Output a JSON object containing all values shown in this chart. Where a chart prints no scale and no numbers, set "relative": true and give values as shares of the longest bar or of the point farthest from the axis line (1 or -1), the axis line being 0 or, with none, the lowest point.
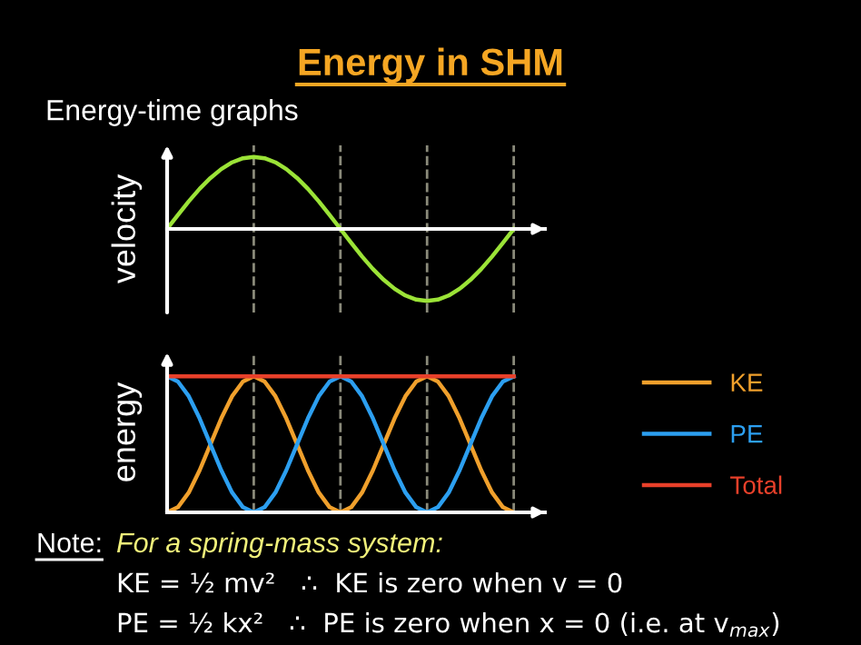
{
  "chart_data": [
    {
      "type": "line",
      "title": "Energy in SHM",
      "subtitle": "Energy-time graphs",
      "ylabel": "velocity",
      "relative": true,
      "grid": "x",
      "legend": false,
      "marker": "none",
      "line_style": "solid",
      "categories": [
        null,
        null,
        null,
        null,
        null,
        null,
        null,
        null,
        null,
        null,
        null,
        null,
        null,
        null,
        null,
        null,
        null,
        null,
        null,
        null,
        null,
        null,
        null,
        null,
        null,
        null,
        null,
        null,
        null,
        null,
        null,
        null,
        null
      ],
      "series": [
        {
          "color": "#9be337",
          "values": [
            0,
            0.195,
            0.383,
            0.556,
            0.707,
            0.831,
            0.924,
            0.981,
            1,
            0.981,
            0.924,
            0.831,
            0.707,
            0.556,
            0.383,
            0.195,
            0,
            -0.195,
            -0.383,
            -0.556,
            -0.707,
            -0.831,
            -0.924,
            -0.981,
            -1,
            -0.981,
            -0.924,
            -0.831,
            -0.707,
            -0.556,
            -0.383,
            -0.195,
            0
          ]
        }
      ]
    },
    {
      "type": "line",
      "ylabel": "energy",
      "relative": true,
      "grid": "x",
      "legend": "right",
      "marker": "none",
      "line_style": "solid",
      "categories": [
        null,
        null,
        null,
        null,
        null,
        null,
        null,
        null,
        null,
        null,
        null,
        null,
        null,
        null,
        null,
        null,
        null,
        null,
        null,
        null,
        null,
        null,
        null,
        null,
        null,
        null,
        null,
        null,
        null,
        null,
        null,
        null,
        null
      ],
      "series": [
        {
          "name": "KE",
          "color": "#f0a02c",
          "values": [
            0,
            0.038,
            0.146,
            0.309,
            0.5,
            0.691,
            0.854,
            0.962,
            1,
            0.962,
            0.854,
            0.691,
            0.5,
            0.309,
            0.146,
            0.038,
            0,
            0.038,
            0.146,
            0.309,
            0.5,
            0.691,
            0.854,
            0.962,
            1,
            0.962,
            0.854,
            0.691,
            0.5,
            0.309,
            0.146,
            0.038,
            0
          ]
        },
        {
          "name": "PE",
          "color": "#2c9ff0",
          "values": [
            1,
            0.962,
            0.854,
            0.691,
            0.5,
            0.309,
            0.146,
            0.038,
            0,
            0.038,
            0.146,
            0.309,
            0.5,
            0.691,
            0.854,
            0.962,
            1,
            0.962,
            0.854,
            0.691,
            0.5,
            0.309,
            0.146,
            0.038,
            0,
            0.038,
            0.146,
            0.309,
            0.5,
            0.691,
            0.854,
            0.962,
            1
          ]
        },
        {
          "name": "Total",
          "color": "#e8402a",
          "values": [
            1,
            1,
            1,
            1,
            1,
            1,
            1,
            1,
            1,
            1,
            1,
            1,
            1,
            1,
            1,
            1,
            1,
            1,
            1,
            1,
            1,
            1,
            1,
            1,
            1,
            1,
            1,
            1,
            1,
            1,
            1,
            1,
            1
          ]
        }
      ],
      "annotations": [
        "Note:",
        "For a spring-mass system:",
        "KE = ½ mv²   ∴  KE is zero when v = 0",
        "PE = ½ kx²   ∴  PE is zero when x = 0 (i.e. at v$_{max}$)"
      ]
    }
  ]
}
